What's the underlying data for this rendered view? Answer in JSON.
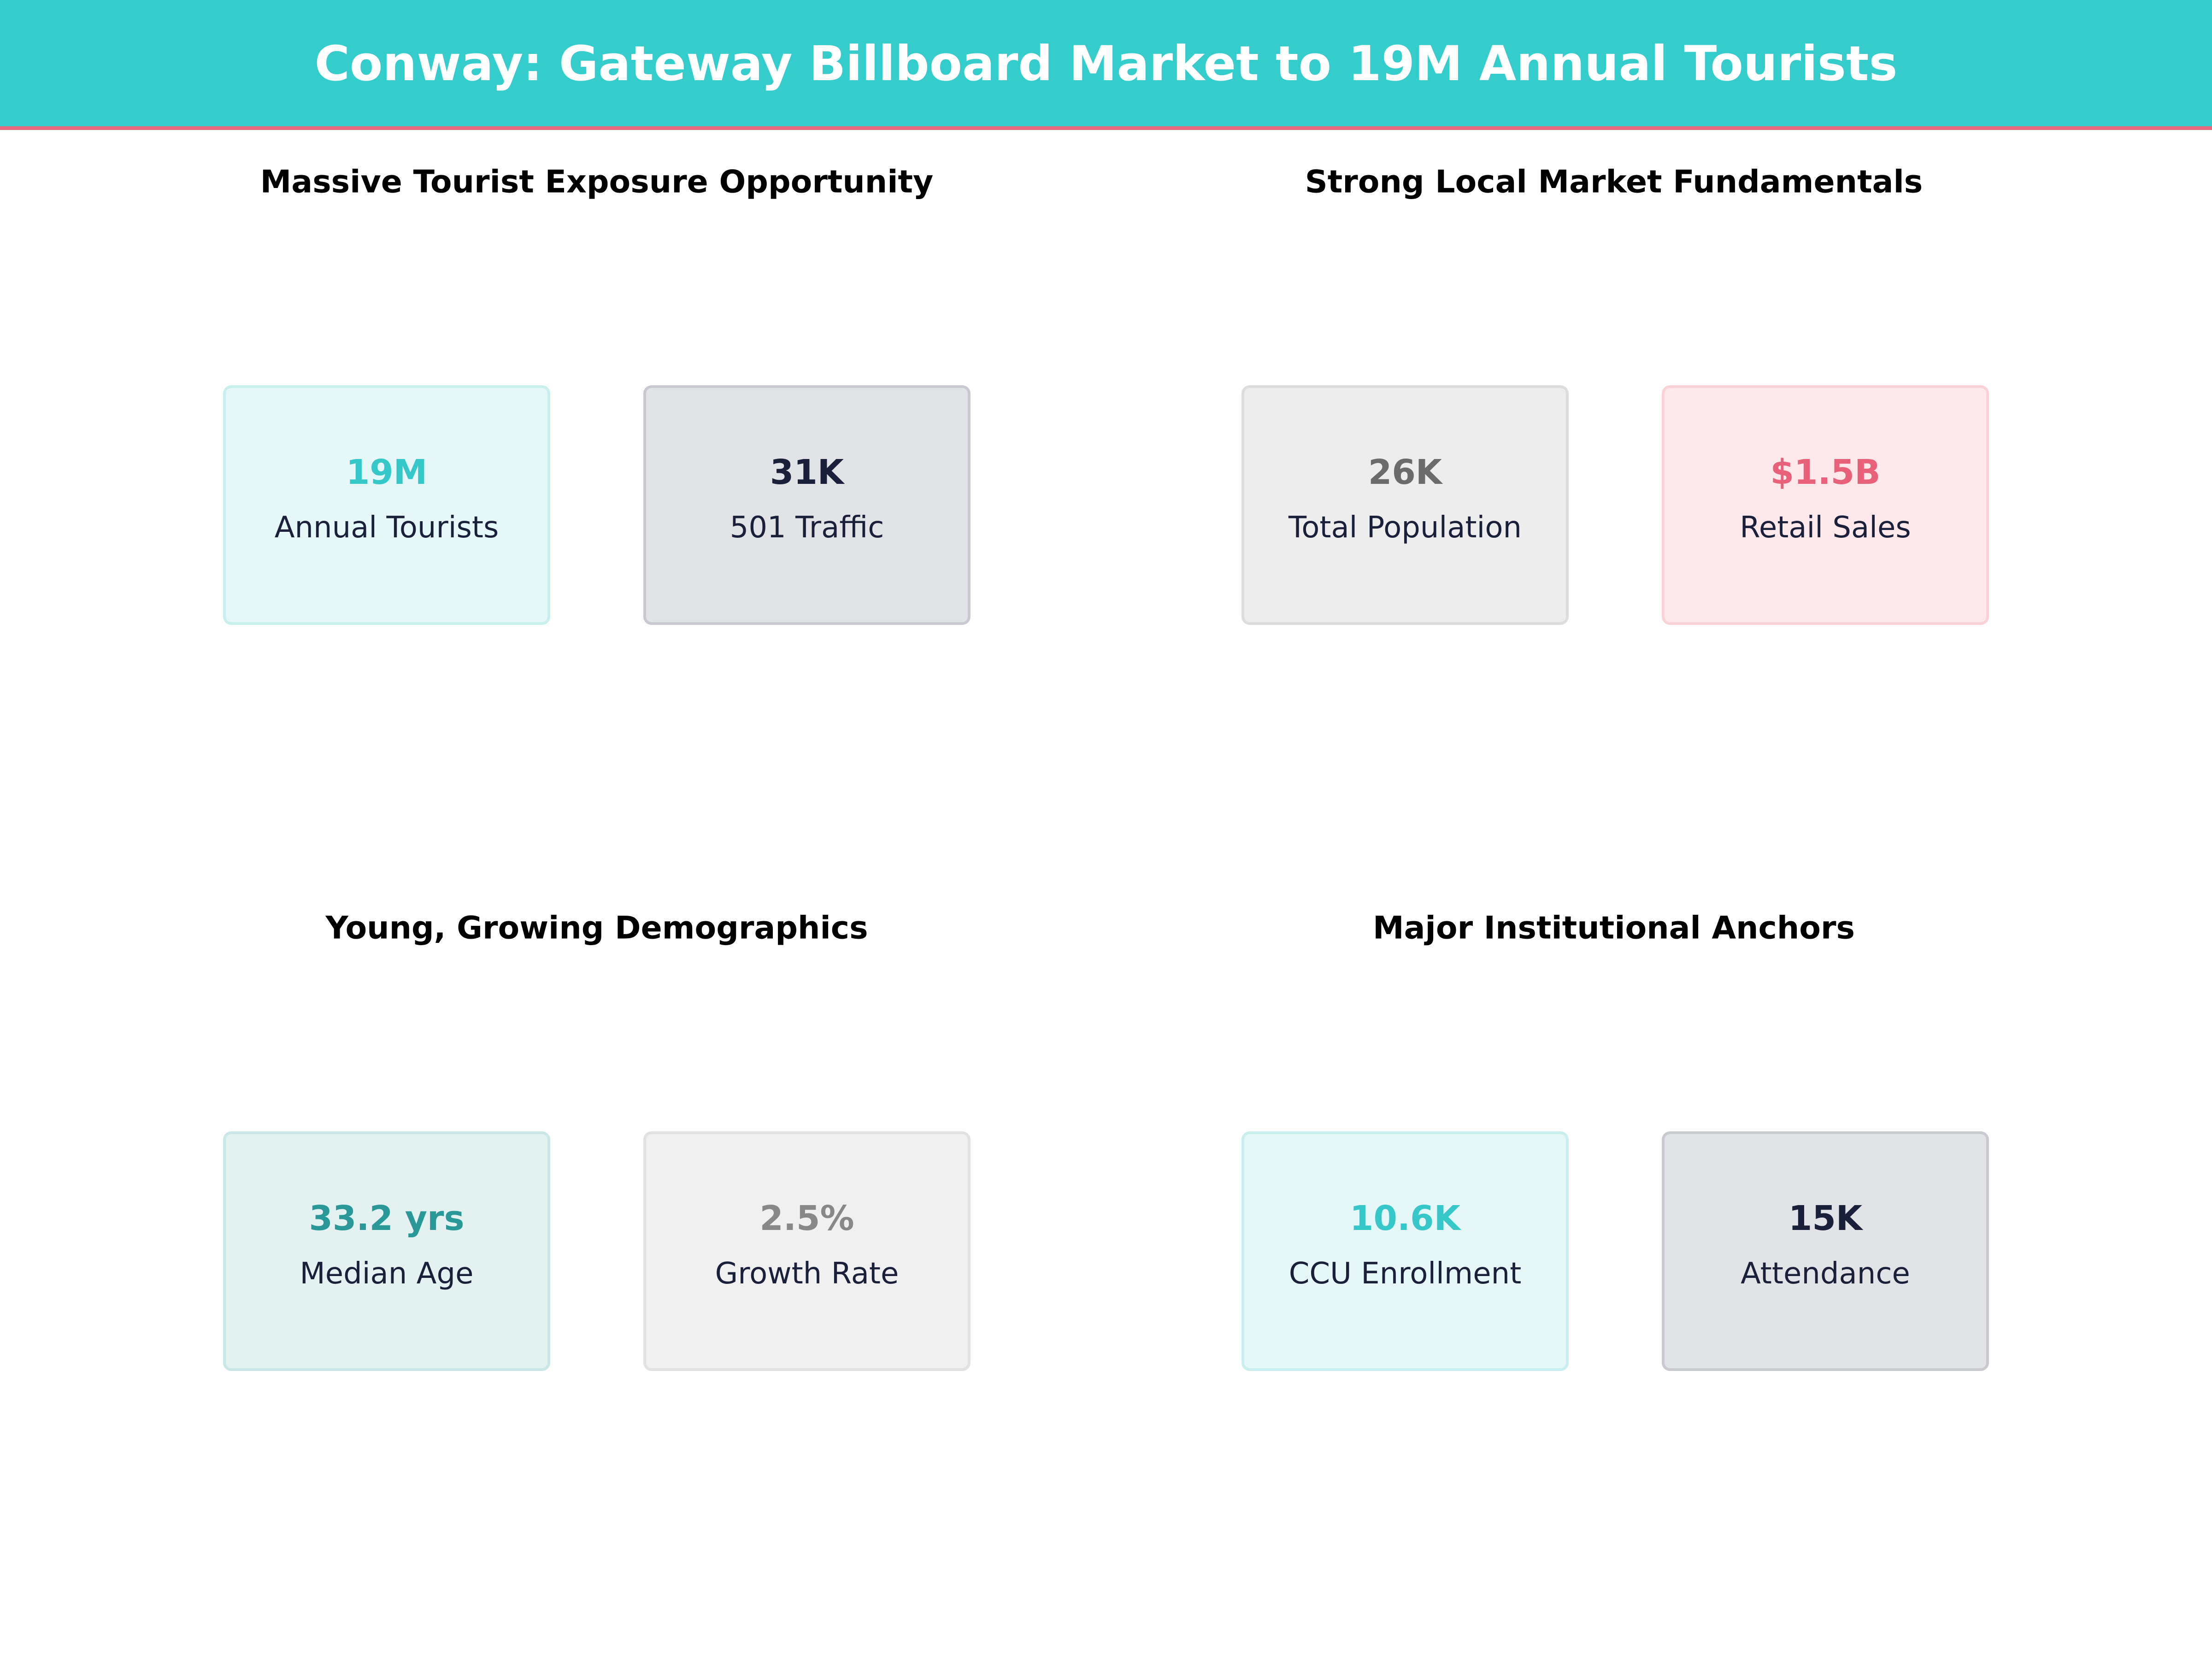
{
  "header": {
    "title": "Conway: Gateway Billboard Market to 19M Annual Tourists"
  },
  "panels": [
    {
      "title": "Massive Tourist Exposure Opportunity",
      "cards": [
        {
          "value": "19M",
          "label": "Annual Tourists"
        },
        {
          "value": "31K",
          "label": "501 Traffic"
        }
      ]
    },
    {
      "title": "Strong Local Market Fundamentals",
      "cards": [
        {
          "value": "26K",
          "label": "Total Population"
        },
        {
          "value": "$1.5B",
          "label": "Retail Sales"
        }
      ]
    },
    {
      "title": "Young, Growing Demographics",
      "cards": [
        {
          "value": "33.2 yrs",
          "label": "Median Age"
        },
        {
          "value": "2.5%",
          "label": "Growth Rate"
        }
      ]
    },
    {
      "title": "Major Institutional Anchors",
      "cards": [
        {
          "value": "10.6K",
          "label": "CCU Enrollment"
        },
        {
          "value": "15K",
          "label": "Attendance"
        }
      ]
    }
  ]
}
